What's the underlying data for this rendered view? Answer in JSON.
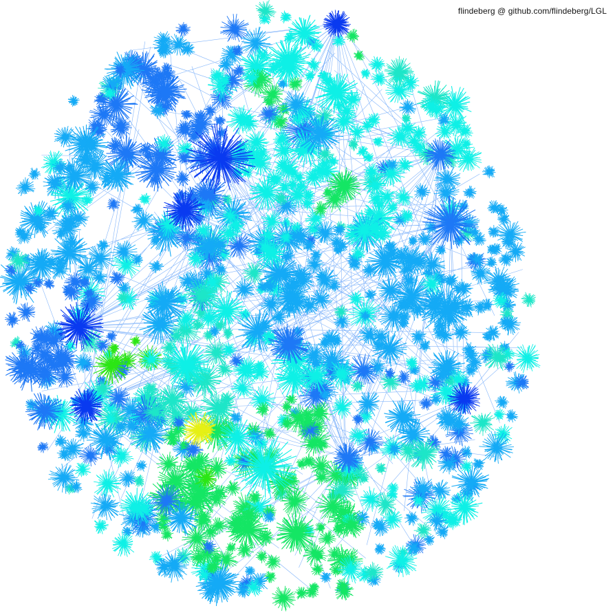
{
  "credit": "flindeberg @ github.com/flindeberg/LGL",
  "visualization": {
    "kind": "force-directed network graph",
    "palette": {
      "background": "#ffffff",
      "deep_blue": "#0a3af0",
      "blue": "#1e78f5",
      "sky": "#14aaf5",
      "cyan": "#0ff0e6",
      "aqua": "#1ee6c8",
      "green": "#14e664",
      "bright_green": "#2ce614",
      "yellow": "#e6f014"
    }
  }
}
